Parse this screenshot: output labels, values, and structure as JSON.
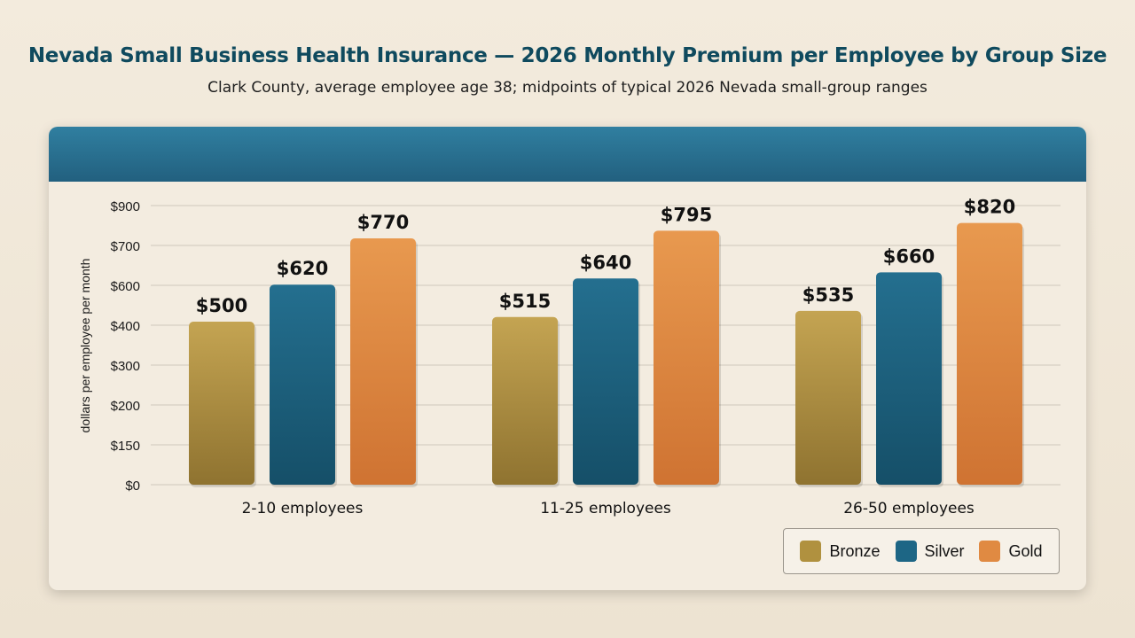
{
  "title": "Nevada Small Business Health Insurance — 2026 Monthly Premium per Employee by Group Size",
  "subtitle": "Clark County, average employee age 38; midpoints of typical 2026 Nevada small-group ranges",
  "colors": {
    "bronze": "#b0913f",
    "silver": "#1d6685",
    "gold": "#e08a42",
    "header": "#2a6f90",
    "title": "#0f4a5e"
  },
  "legend": [
    {
      "label": "Bronze",
      "color": "#b0913f"
    },
    {
      "label": "Silver",
      "color": "#1d6685"
    },
    {
      "label": "Gold",
      "color": "#e08a42"
    }
  ],
  "chart_data": {
    "type": "bar",
    "ylabel": "dollars per employee per month",
    "categories": [
      "2-10 employees",
      "11-25 employees",
      "26-50 employees"
    ],
    "series": [
      {
        "name": "Bronze",
        "values": [
          500,
          515,
          535
        ]
      },
      {
        "name": "Silver",
        "values": [
          620,
          640,
          660
        ]
      },
      {
        "name": "Gold",
        "values": [
          770,
          795,
          820
        ]
      }
    ],
    "y_ticks": [
      "$0",
      "$150",
      "$200",
      "$300",
      "$400",
      "$600",
      "$700",
      "$900"
    ],
    "grid": true,
    "legend_position": "bottom-right"
  }
}
